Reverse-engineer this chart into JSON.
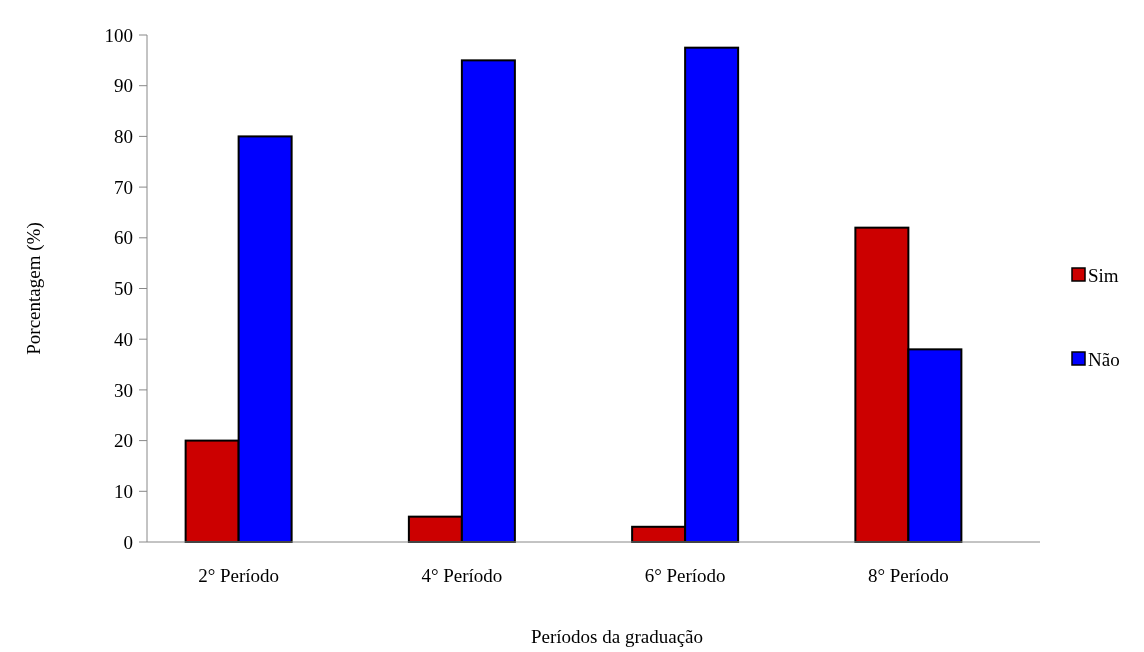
{
  "chart_data": {
    "type": "bar",
    "xlabel": "Períodos da graduação",
    "ylabel": "Porcentagem (%)",
    "categories": [
      "2° Período",
      "4° Período",
      "6° Período",
      "8° Período"
    ],
    "series": [
      {
        "name": "Sim",
        "color": "#cc0000",
        "values": [
          20,
          5,
          3,
          62
        ]
      },
      {
        "name": "Não",
        "color": "#0000ff",
        "values": [
          80,
          95,
          97.5,
          38
        ]
      }
    ],
    "ylim": [
      0,
      100
    ],
    "yticks": [
      0,
      10,
      20,
      30,
      40,
      50,
      60,
      70,
      80,
      90,
      100
    ],
    "grid": false,
    "legend": "right"
  }
}
